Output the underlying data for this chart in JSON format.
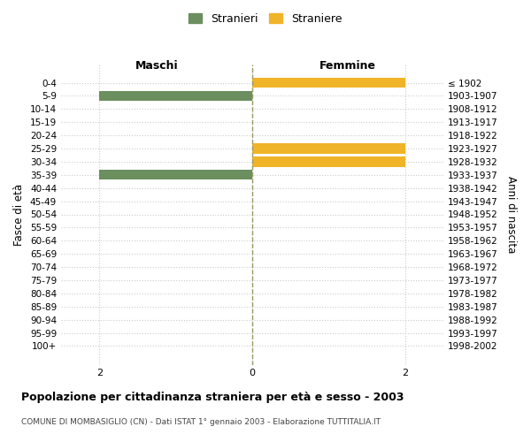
{
  "age_groups": [
    "0-4",
    "5-9",
    "10-14",
    "15-19",
    "20-24",
    "25-29",
    "30-34",
    "35-39",
    "40-44",
    "45-49",
    "50-54",
    "55-59",
    "60-64",
    "65-69",
    "70-74",
    "75-79",
    "80-84",
    "85-89",
    "90-94",
    "95-99",
    "100+"
  ],
  "birth_years": [
    "1998-2002",
    "1993-1997",
    "1988-1992",
    "1983-1987",
    "1978-1982",
    "1973-1977",
    "1968-1972",
    "1963-1967",
    "1958-1962",
    "1953-1957",
    "1948-1952",
    "1943-1947",
    "1938-1942",
    "1933-1937",
    "1928-1932",
    "1923-1927",
    "1918-1922",
    "1913-1917",
    "1908-1912",
    "1903-1907",
    "≤ 1902"
  ],
  "males": [
    0,
    2,
    0,
    0,
    0,
    0,
    0,
    2,
    0,
    0,
    0,
    0,
    0,
    0,
    0,
    0,
    0,
    0,
    0,
    0,
    0
  ],
  "females": [
    2,
    0,
    0,
    0,
    0,
    2,
    2,
    0,
    0,
    0,
    0,
    0,
    0,
    0,
    0,
    0,
    0,
    0,
    0,
    0,
    0
  ],
  "male_color": "#6b8f5e",
  "female_color": "#f0b429",
  "xlim": [
    -2.5,
    2.5
  ],
  "xticks": [
    -2,
    0,
    2
  ],
  "title": "Popolazione per cittadinanza straniera per età e sesso - 2003",
  "subtitle": "COMUNE DI MOMBASIGLIO (CN) - Dati ISTAT 1° gennaio 2003 - Elaborazione TUTTITALIA.IT",
  "ylabel_left": "Fasce di età",
  "ylabel_right": "Anni di nascita",
  "legend_male": "Stranieri",
  "legend_female": "Straniere",
  "header_left": "Maschi",
  "header_right": "Femmine",
  "background_color": "#ffffff",
  "grid_color": "#cccccc",
  "bar_height": 0.75
}
